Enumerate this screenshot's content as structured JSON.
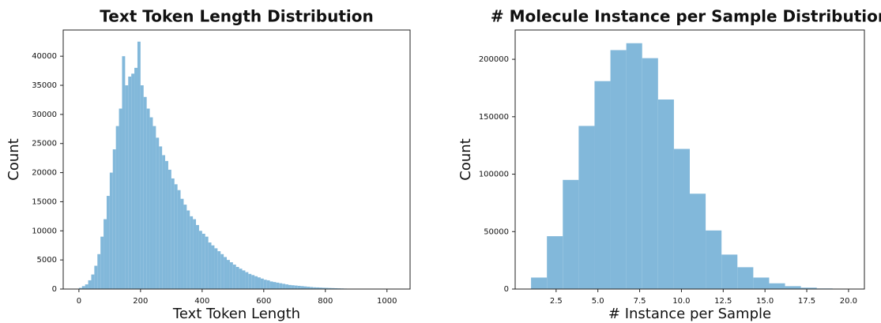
{
  "chart_data": [
    {
      "type": "histogram",
      "title": "Text Token Length Distribution",
      "x_label": "Text Token Length",
      "y_label": "Count",
      "color": "#82b8da",
      "bins": [
        0,
        10,
        20,
        30,
        40,
        50,
        60,
        70,
        80,
        90,
        100,
        110,
        120,
        130,
        140,
        150,
        160,
        170,
        180,
        190,
        200,
        210,
        220,
        230,
        240,
        250,
        260,
        270,
        280,
        290,
        300,
        310,
        320,
        330,
        340,
        350,
        360,
        370,
        380,
        390,
        400,
        410,
        420,
        430,
        440,
        450,
        460,
        470,
        480,
        490,
        500,
        510,
        520,
        530,
        540,
        550,
        560,
        570,
        580,
        590,
        600,
        610,
        620,
        630,
        640,
        650,
        660,
        670,
        680,
        690,
        700,
        710,
        720,
        730,
        740,
        750,
        760,
        770,
        780,
        790,
        800,
        810,
        820,
        830,
        840,
        850,
        860,
        870,
        880,
        890,
        900,
        910,
        920,
        930,
        940,
        950,
        960,
        970,
        980,
        990,
        1000,
        1010,
        1020
      ],
      "counts": [
        200,
        500,
        800,
        1500,
        2500,
        4000,
        6000,
        9000,
        12000,
        16000,
        20000,
        24000,
        28000,
        31000,
        40000,
        35000,
        36500,
        37000,
        38000,
        42500,
        35000,
        33000,
        31000,
        29500,
        28000,
        26000,
        24500,
        23000,
        22000,
        20500,
        19000,
        18000,
        17000,
        15500,
        14500,
        13500,
        12500,
        12000,
        11000,
        10000,
        9500,
        9000,
        8000,
        7500,
        7000,
        6500,
        6000,
        5500,
        5000,
        4600,
        4200,
        3800,
        3500,
        3200,
        2900,
        2600,
        2400,
        2200,
        2000,
        1800,
        1600,
        1500,
        1300,
        1200,
        1100,
        1000,
        900,
        800,
        700,
        650,
        600,
        550,
        500,
        450,
        400,
        350,
        300,
        280,
        250,
        220,
        200,
        180,
        160,
        140,
        120,
        100,
        80,
        60,
        50,
        40,
        30,
        25,
        20,
        15,
        10,
        10,
        8,
        6,
        5,
        4,
        3,
        2
      ],
      "xlim": [
        -51,
        1075
      ],
      "xticks": [
        0,
        200,
        400,
        600,
        800,
        1000
      ],
      "ylim": [
        0,
        44500
      ],
      "yticks": [
        0,
        5000,
        10000,
        15000,
        20000,
        25000,
        30000,
        35000,
        40000
      ]
    },
    {
      "type": "histogram",
      "title": "# Molecule Instance per Sample Distribution",
      "x_label": "# Instance per Sample",
      "y_label": "Count",
      "color": "#82b8da",
      "bins": [
        1,
        1.95,
        2.9,
        3.85,
        4.8,
        5.75,
        6.7,
        7.65,
        8.6,
        9.55,
        10.5,
        11.45,
        12.4,
        13.35,
        14.3,
        15.25,
        16.2,
        17.15,
        18.1,
        19.05,
        20
      ],
      "counts": [
        10000,
        46000,
        95000,
        142000,
        181000,
        208000,
        214000,
        201000,
        165000,
        122000,
        83000,
        51000,
        30000,
        19000,
        10000,
        5000,
        2500,
        1200,
        500,
        200
      ],
      "xlim": [
        0.05,
        20.95
      ],
      "xticks": [
        2.5,
        {
          "value": 5,
          "label": "5.0"
        },
        7.5,
        {
          "value": 10,
          "label": "10.0"
        },
        12.5,
        {
          "value": 15,
          "label": "15.0"
        },
        17.5,
        {
          "value": 20,
          "label": "20.0"
        }
      ],
      "ylim": [
        0,
        225500
      ],
      "yticks": [
        0,
        50000,
        100000,
        150000,
        200000
      ]
    }
  ]
}
